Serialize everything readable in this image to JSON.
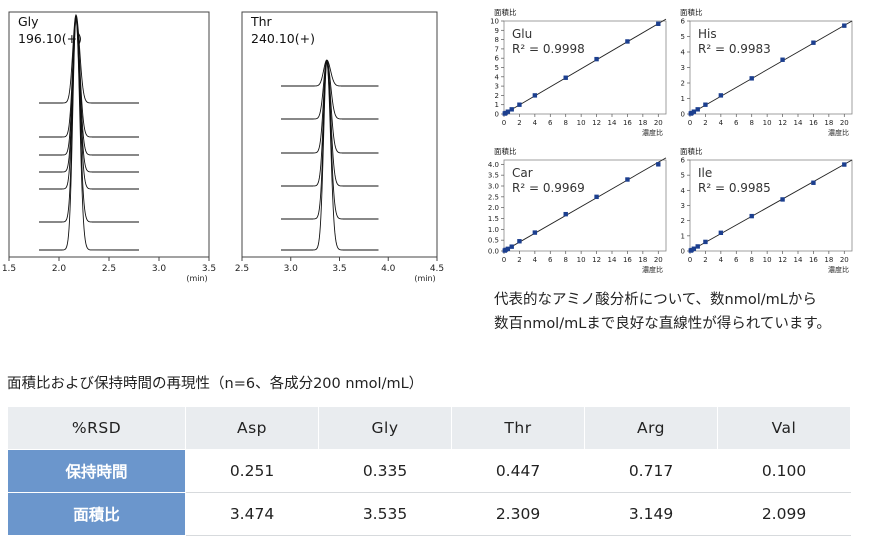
{
  "chromatograms": [
    {
      "compound": "Gly",
      "mz": "196.10(+)",
      "xticks": [
        "1.5",
        "2.0",
        "2.5",
        "3.0",
        "3.5"
      ],
      "xunit": "(min)",
      "peak_rt": 2.17,
      "baseline_start": 1.8,
      "baseline_end": 2.8,
      "xlim": [
        1.5,
        3.5
      ],
      "traces": 6
    },
    {
      "compound": "Thr",
      "mz": "240.10(+)",
      "xticks": [
        "2.5",
        "3.0",
        "3.5",
        "4.0",
        "4.5"
      ],
      "xunit": "(min)",
      "peak_rt": 3.37,
      "baseline_start": 2.9,
      "baseline_end": 3.9,
      "xlim": [
        2.5,
        4.5
      ],
      "traces": 6
    }
  ],
  "chart_data": [
    {
      "type": "scatter",
      "title": "Glu",
      "r2": "R² = 0.9998",
      "xlabel": "濃度比",
      "ylabel": "面積比",
      "xlim": [
        0,
        21
      ],
      "ylim": [
        0,
        10
      ],
      "xticks": [
        0,
        2,
        4,
        6,
        8,
        10,
        12,
        14,
        16,
        18,
        20
      ],
      "yticks": [
        0,
        1,
        2,
        3,
        4,
        5,
        6,
        7,
        8,
        9,
        10
      ],
      "x": [
        0.1,
        0.2,
        0.5,
        1,
        2,
        4,
        8,
        12,
        16,
        20
      ],
      "y": [
        0.05,
        0.1,
        0.25,
        0.5,
        1.0,
        2.0,
        3.9,
        5.9,
        7.8,
        9.7
      ],
      "fit": [
        [
          0,
          0
        ],
        [
          21,
          10.2
        ]
      ]
    },
    {
      "type": "scatter",
      "title": "His",
      "r2": "R² = 0.9983",
      "xlabel": "濃度比",
      "ylabel": "面積比",
      "xlim": [
        0,
        21
      ],
      "ylim": [
        0,
        6
      ],
      "xticks": [
        0,
        2,
        4,
        6,
        8,
        10,
        12,
        14,
        16,
        18,
        20
      ],
      "yticks": [
        0,
        1,
        2,
        3,
        4,
        5,
        6
      ],
      "x": [
        0.1,
        0.2,
        0.5,
        1,
        2,
        4,
        8,
        12,
        16,
        20
      ],
      "y": [
        0.03,
        0.06,
        0.15,
        0.3,
        0.6,
        1.2,
        2.3,
        3.5,
        4.6,
        5.7
      ],
      "fit": [
        [
          0,
          0
        ],
        [
          21,
          6.0
        ]
      ]
    },
    {
      "type": "scatter",
      "title": "Car",
      "r2": "R² = 0.9969",
      "xlabel": "濃度比",
      "ylabel": "面積比",
      "xlim": [
        0,
        21
      ],
      "ylim": [
        0,
        4.2
      ],
      "xticks": [
        0,
        2,
        4,
        6,
        8,
        10,
        12,
        14,
        16,
        18,
        20
      ],
      "yticks": [
        0.0,
        0.5,
        1.0,
        1.5,
        2.0,
        2.5,
        3.0,
        3.5,
        4.0
      ],
      "ytick_labels": [
        "0.0",
        "0.5",
        "1.0",
        "1.5",
        "2.0",
        "2.5",
        "3.0",
        "3.5",
        "4.0"
      ],
      "x": [
        0.1,
        0.2,
        0.5,
        1,
        2,
        4,
        8,
        12,
        16,
        20
      ],
      "y": [
        0.02,
        0.05,
        0.1,
        0.2,
        0.45,
        0.85,
        1.7,
        2.5,
        3.3,
        4.0
      ],
      "fit": [
        [
          0,
          0
        ],
        [
          21,
          4.3
        ]
      ]
    },
    {
      "type": "scatter",
      "title": "Ile",
      "r2": "R² = 0.9985",
      "xlabel": "濃度比",
      "ylabel": "面積比",
      "xlim": [
        0,
        21
      ],
      "ylim": [
        0,
        6
      ],
      "xticks": [
        0,
        2,
        4,
        6,
        8,
        10,
        12,
        14,
        16,
        18,
        20
      ],
      "yticks": [
        0,
        1,
        2,
        3,
        4,
        5,
        6
      ],
      "x": [
        0.1,
        0.2,
        0.5,
        1,
        2,
        4,
        8,
        12,
        16,
        20
      ],
      "y": [
        0.03,
        0.06,
        0.15,
        0.3,
        0.6,
        1.2,
        2.3,
        3.4,
        4.5,
        5.7
      ],
      "fit": [
        [
          0,
          0
        ],
        [
          21,
          6.0
        ]
      ]
    }
  ],
  "caption": {
    "line1": "代表的なアミノ酸分析について、数nmol/mLから",
    "line2": "数百nmol/mLまで良好な直線性が得られています。"
  },
  "table": {
    "title": "面積比および保持時間の再現性（n=6、各成分200 nmol/mL）",
    "header": [
      "%RSD",
      "Asp",
      "Gly",
      "Thr",
      "Arg",
      "Val"
    ],
    "rows": [
      {
        "label": "保持時間",
        "values": [
          "0.251",
          "0.335",
          "0.447",
          "0.717",
          "0.100"
        ]
      },
      {
        "label": "面積比",
        "values": [
          "3.474",
          "3.535",
          "2.309",
          "3.149",
          "2.099"
        ]
      }
    ]
  },
  "colors": {
    "marker": "#1c3f8f",
    "row_header": "#6b96cc",
    "header_bg": "#e9ecef"
  }
}
